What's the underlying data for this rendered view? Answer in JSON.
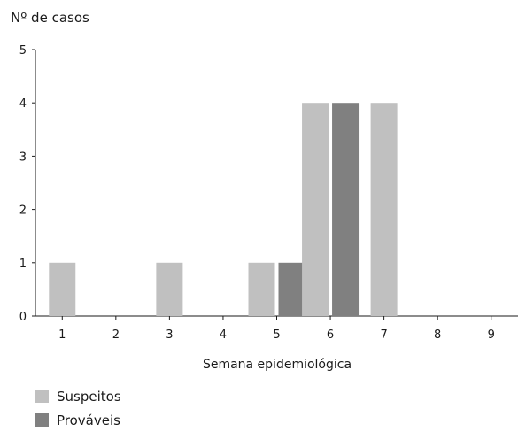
{
  "chart_data": {
    "type": "bar",
    "ylabel": "Nº de casos",
    "xlabel": "Semana epidemiológica",
    "ylim": [
      0,
      5
    ],
    "yticks": [
      0,
      1,
      2,
      3,
      4,
      5
    ],
    "categories": [
      "1",
      "2",
      "3",
      "4",
      "5",
      "6",
      "7",
      "8",
      "9"
    ],
    "series": [
      {
        "name": "Suspeitos",
        "color": "#c0c0c0",
        "values": [
          1,
          0,
          1,
          0,
          1,
          4,
          4,
          0,
          0
        ]
      },
      {
        "name": "Prováveis",
        "color": "#808080",
        "values": [
          0,
          0,
          0,
          0,
          1,
          4,
          0,
          0,
          0
        ]
      }
    ],
    "grid": false,
    "legend": "bottom-left"
  }
}
